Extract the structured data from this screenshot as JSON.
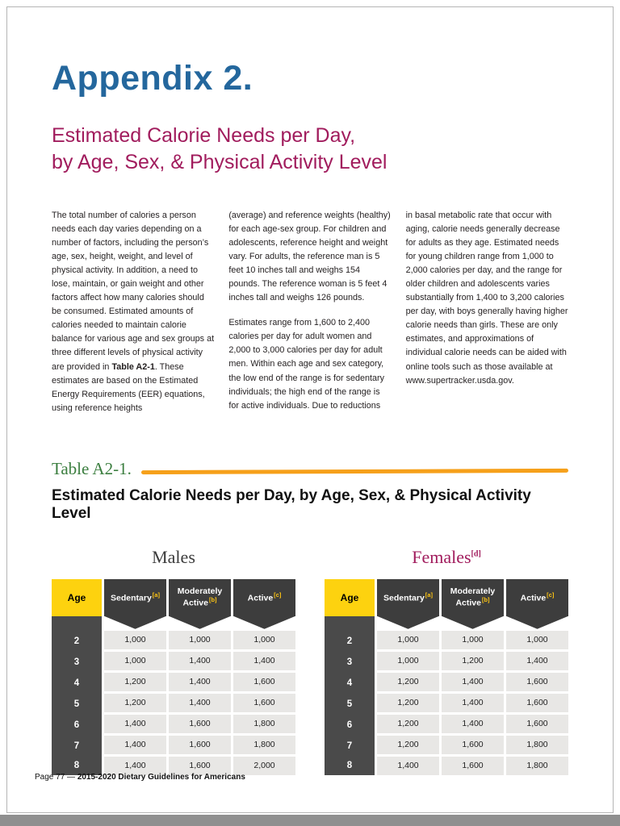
{
  "page": {
    "title": "Appendix 2.",
    "subtitle_line1": "Estimated Calorie Needs per Day,",
    "subtitle_line2": "by Age, Sex, & Physical Activity Level",
    "footer": {
      "page_label": "Page 77 — ",
      "doc_label": "2015-2020 Dietary Guidelines for Americans"
    }
  },
  "body": {
    "col1": {
      "p1a": "The total number of calories a person needs each day varies depending on a number of factors, including the person’s age, sex, height, weight, and level of physical activity. In addition, a need to lose, maintain, or gain weight and other factors affect how many calories should be consumed. Estimated amounts of calories needed to maintain calorie balance for various age and sex groups at three different levels of physical activity are provided in ",
      "p1_bold": "Table A2-1",
      "p1b": ". These estimates are based on the Estimated Energy Requirements (EER) equations, using reference heights"
    },
    "col2": {
      "p1": "(average) and reference weights (healthy) for each age-sex group. For children and adolescents, reference height and weight vary. For adults, the reference man is 5 feet 10 inches tall and weighs 154 pounds. The reference woman is 5 feet 4 inches tall and weighs 126 pounds.",
      "p2": "Estimates range from 1,600 to 2,400 calories per day for adult women and 2,000 to 3,000 calories per day for adult men. Within each age and sex category, the low end of the range is for sedentary individuals; the high end of the range is for active individuals. Due to reductions"
    },
    "col3": {
      "p1": "in basal metabolic rate that occur with aging, calorie needs generally decrease for adults as they age. Estimated needs for young children range from 1,000 to 2,000 calories per day, and the range for older children and adolescents varies substantially from 1,400 to 3,200 calories per day, with boys generally having higher calorie needs than girls. These are only estimates, and approximations of individual calorie needs can be aided with online tools such as those available at www.supertracker.usda.gov."
    }
  },
  "table_section": {
    "label": "Table A2-1.",
    "heading": "Estimated Calorie Needs per Day, by Age, Sex, & Physical Activity Level",
    "males": {
      "title": "Males",
      "title_sup": "",
      "headers": [
        {
          "label": "Age",
          "sup": ""
        },
        {
          "label": "Sedentary",
          "sup": "[a]"
        },
        {
          "label": "Moderately Active",
          "sup": "[b]"
        },
        {
          "label": "Active",
          "sup": "[c]"
        }
      ],
      "rows": [
        {
          "age": "2",
          "values": [
            "1,000",
            "1,000",
            "1,000"
          ]
        },
        {
          "age": "3",
          "values": [
            "1,000",
            "1,400",
            "1,400"
          ]
        },
        {
          "age": "4",
          "values": [
            "1,200",
            "1,400",
            "1,600"
          ]
        },
        {
          "age": "5",
          "values": [
            "1,200",
            "1,400",
            "1,600"
          ]
        },
        {
          "age": "6",
          "values": [
            "1,400",
            "1,600",
            "1,800"
          ]
        },
        {
          "age": "7",
          "values": [
            "1,400",
            "1,600",
            "1,800"
          ]
        },
        {
          "age": "8",
          "values": [
            "1,400",
            "1,600",
            "2,000"
          ]
        }
      ]
    },
    "females": {
      "title": "Females",
      "title_sup": "[d]",
      "headers": [
        {
          "label": "Age",
          "sup": ""
        },
        {
          "label": "Sedentary",
          "sup": "[a]"
        },
        {
          "label": "Moderately Active",
          "sup": "[b]"
        },
        {
          "label": "Active",
          "sup": "[c]"
        }
      ],
      "rows": [
        {
          "age": "2",
          "values": [
            "1,000",
            "1,000",
            "1,000"
          ]
        },
        {
          "age": "3",
          "values": [
            "1,000",
            "1,200",
            "1,400"
          ]
        },
        {
          "age": "4",
          "values": [
            "1,200",
            "1,400",
            "1,600"
          ]
        },
        {
          "age": "5",
          "values": [
            "1,200",
            "1,400",
            "1,600"
          ]
        },
        {
          "age": "6",
          "values": [
            "1,200",
            "1,400",
            "1,600"
          ]
        },
        {
          "age": "7",
          "values": [
            "1,200",
            "1,600",
            "1,800"
          ]
        },
        {
          "age": "8",
          "values": [
            "1,400",
            "1,600",
            "1,800"
          ]
        }
      ]
    }
  }
}
